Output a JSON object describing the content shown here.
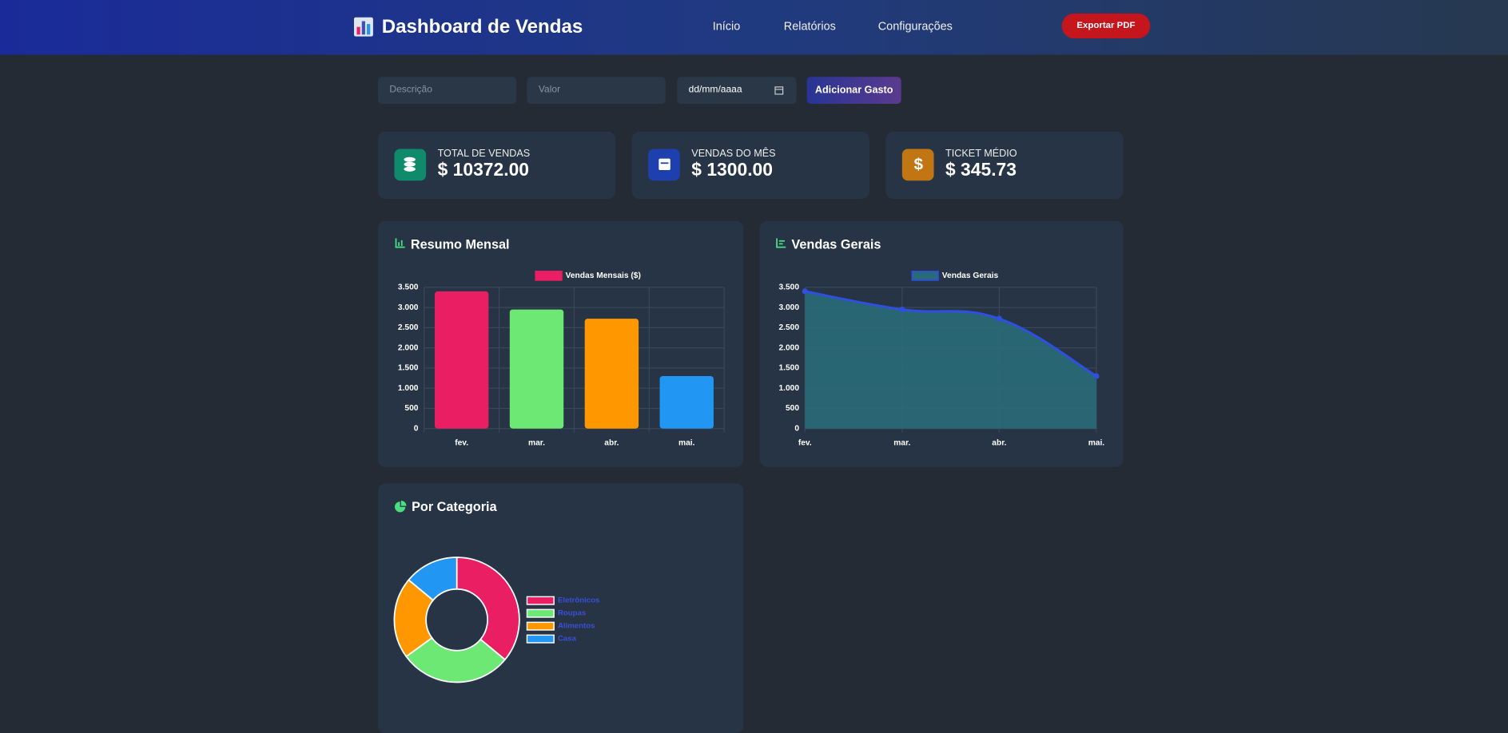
{
  "header": {
    "title": "Dashboard de Vendas",
    "nav": [
      "Início",
      "Relatórios",
      "Configurações"
    ],
    "export_button": "Exportar PDF"
  },
  "form": {
    "placeholders": [
      "Descrição",
      "Valor"
    ],
    "date_placeholder": "dd/mm/aaaa",
    "submit": "Adicionar Gasto"
  },
  "cards": [
    {
      "label": "TOTAL DE VENDAS",
      "value": "$ 10372.00"
    },
    {
      "label": "VENDAS DO MÊS",
      "value": "$ 1300.00"
    },
    {
      "label": "TICKET MÉDIO",
      "value": "$ 345.73"
    }
  ],
  "chart_data": [
    {
      "type": "bar",
      "title": "Resumo Mensal",
      "categories": [
        "fev.",
        "mar.",
        "abr.",
        "mai."
      ],
      "series": [
        {
          "name": "Vendas Mensais ($)",
          "color": "#e91e63",
          "colors": [
            "#e91e63",
            "#6ee874",
            "#ff9800",
            "#2196f3"
          ],
          "values": [
            3400,
            2950,
            2722,
            1300
          ]
        }
      ],
      "ylim": [
        0,
        3500
      ],
      "yticks": [
        0,
        500,
        {
          "value": 1000,
          "label": "1.000"
        },
        {
          "value": 1500,
          "label": "1.500"
        },
        {
          "value": 2000,
          "label": "2.000"
        },
        {
          "value": 2500,
          "label": "2.500"
        },
        {
          "value": 3000,
          "label": "3.000"
        },
        {
          "value": 3500,
          "label": "3.500"
        }
      ],
      "grid": true
    },
    {
      "type": "line",
      "title": "Vendas Gerais",
      "categories": [
        "fev.",
        "mar.",
        "abr.",
        "mai."
      ],
      "series": [
        {
          "name": "Vendas Gerais",
          "color": "#2f4fe0",
          "fill": "#2a6b78",
          "values": [
            3400,
            2950,
            2722,
            1300
          ]
        }
      ],
      "ylim": [
        0,
        3500
      ],
      "yticks": [
        0,
        500,
        {
          "value": 1000,
          "label": "1.000"
        },
        {
          "value": 1500,
          "label": "1.500"
        },
        {
          "value": 2000,
          "label": "2.000"
        },
        {
          "value": 2500,
          "label": "2.500"
        },
        {
          "value": 3000,
          "label": "3.000"
        },
        {
          "value": 3500,
          "label": "3.500"
        }
      ],
      "grid": true
    },
    {
      "type": "doughnut",
      "title": "Por Categoria",
      "categories": [
        "Eletrônicos",
        "Roupas",
        "Alimentos",
        "Casa"
      ],
      "values": [
        36,
        29,
        21,
        14
      ],
      "colors": [
        "#e91e63",
        "#6ee874",
        "#ff9800",
        "#2196f3"
      ]
    }
  ]
}
